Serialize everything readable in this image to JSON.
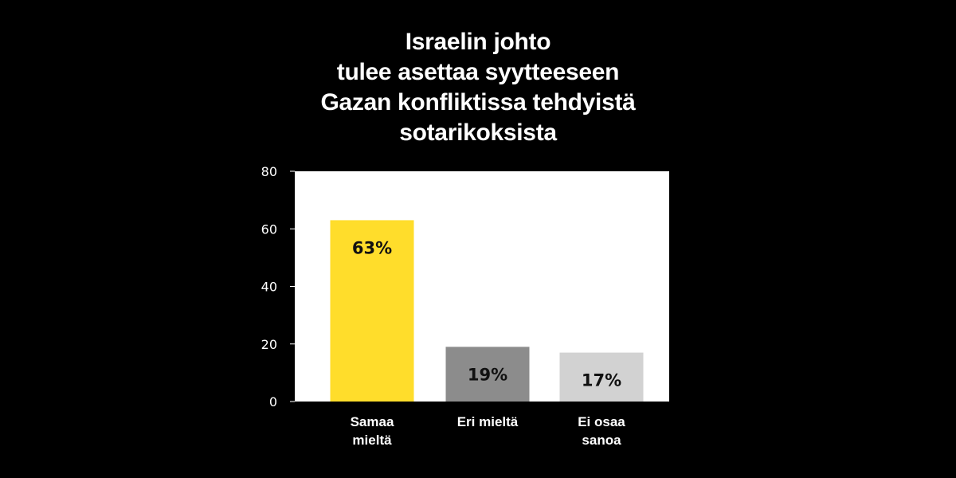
{
  "title_lines": [
    "Israelin johto",
    "tulee asettaa syytteeseen",
    "Gazan konfliktissa tehdyistä",
    "sotarikoksista"
  ],
  "colors": {
    "background": "#000000",
    "plot_background": "#ffffff",
    "text": "#ffffff"
  },
  "chart_data": {
    "type": "bar",
    "title": "Israelin johto tulee asettaa syytteeseen Gazan konfliktissa tehdyistä sotarikoksista",
    "categories": [
      [
        "Samaa",
        "mieltä"
      ],
      [
        "Eri mieltä"
      ],
      [
        "Ei osaa",
        "sanoa"
      ]
    ],
    "values": [
      63,
      19,
      17
    ],
    "value_labels": [
      "63%",
      "19%",
      "17%"
    ],
    "bar_colors": [
      "#ffdd2b",
      "#8c8c8c",
      "#d2d2d2"
    ],
    "ylim": [
      0,
      80
    ],
    "yticks": [
      0,
      20,
      40,
      60,
      80
    ],
    "xlabel": "",
    "ylabel": "",
    "grid": false,
    "legend": "none"
  }
}
